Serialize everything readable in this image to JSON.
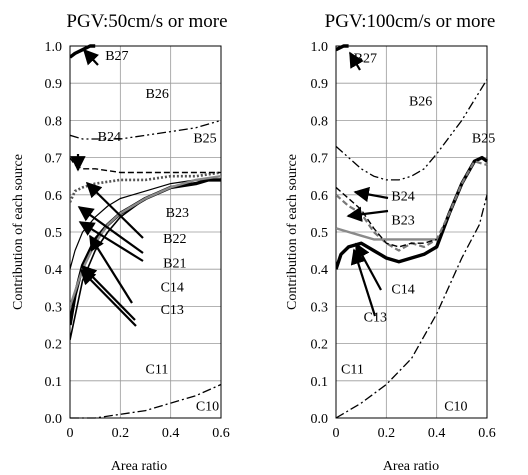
{
  "chart_data": [
    {
      "type": "line",
      "title": "PGV:50cm/s or more",
      "xlabel": "Area ratio",
      "ylabel": "Contribution of each source",
      "xlim": [
        0,
        0.6
      ],
      "ylim": [
        0,
        1.0
      ],
      "xticks": [
        "0",
        "0.2",
        "0.4",
        "0.6"
      ],
      "yticks": [
        "0.0",
        "0.1",
        "0.2",
        "0.3",
        "0.4",
        "0.5",
        "0.6",
        "0.7",
        "0.8",
        "0.9",
        "1.0"
      ],
      "grid": true,
      "series": [
        {
          "style": "dash-dot",
          "x": [
            0,
            0.1,
            0.2,
            0.3,
            0.4,
            0.5,
            0.6
          ],
          "y": [
            0.0,
            0.0,
            0.01,
            0.02,
            0.04,
            0.06,
            0.09
          ]
        },
        {
          "style": "solid",
          "x": [
            0,
            0.05,
            0.1,
            0.15,
            0.2,
            0.3,
            0.4,
            0.5,
            0.6
          ],
          "y": [
            0.21,
            0.37,
            0.45,
            0.5,
            0.54,
            0.59,
            0.62,
            0.64,
            0.64
          ]
        },
        {
          "style": "solid-bold",
          "x": [
            0,
            0.02,
            0.05,
            0.1,
            0.15,
            0.2,
            0.3,
            0.4,
            0.5,
            0.55,
            0.6
          ],
          "y": [
            0.25,
            0.33,
            0.41,
            0.48,
            0.52,
            0.55,
            0.59,
            0.62,
            0.63,
            0.64,
            0.64
          ]
        },
        {
          "style": "solid-thin",
          "x": [
            0,
            0.02,
            0.05,
            0.1,
            0.15,
            0.2,
            0.3,
            0.4,
            0.5,
            0.6
          ],
          "y": [
            0.4,
            0.45,
            0.5,
            0.54,
            0.57,
            0.59,
            0.61,
            0.63,
            0.64,
            0.65
          ]
        },
        {
          "style": "solid-gray",
          "x": [
            0,
            0.05,
            0.1,
            0.15,
            0.2,
            0.3,
            0.4,
            0.5,
            0.6
          ],
          "y": [
            0.3,
            0.4,
            0.47,
            0.52,
            0.55,
            0.59,
            0.62,
            0.64,
            0.65
          ]
        },
        {
          "style": "dotted-bold",
          "x": [
            0,
            0.02,
            0.05,
            0.1,
            0.2,
            0.3,
            0.4,
            0.5,
            0.6
          ],
          "y": [
            0.58,
            0.61,
            0.62,
            0.63,
            0.64,
            0.64,
            0.65,
            0.65,
            0.66
          ]
        },
        {
          "style": "dashed",
          "x": [
            0,
            0.02,
            0.05,
            0.1,
            0.2,
            0.3,
            0.4,
            0.5,
            0.6
          ],
          "y": [
            0.7,
            0.68,
            0.67,
            0.67,
            0.66,
            0.66,
            0.66,
            0.66,
            0.66
          ]
        },
        {
          "style": "dash-dot-dot",
          "x": [
            0,
            0.05,
            0.1,
            0.2,
            0.3,
            0.4,
            0.5,
            0.6
          ],
          "y": [
            0.76,
            0.75,
            0.75,
            0.75,
            0.76,
            0.77,
            0.78,
            0.8
          ]
        },
        {
          "style": "solid-bold",
          "x": [
            0,
            0.02,
            0.05,
            0.08,
            0.1
          ],
          "y": [
            0.97,
            0.98,
            0.99,
            1.0,
            1.0
          ]
        }
      ],
      "labels": [
        {
          "text": "B27",
          "x": 0.14,
          "y": 0.962
        },
        {
          "text": "B26",
          "x": 0.3,
          "y": 0.86
        },
        {
          "text": "B25",
          "x": 0.49,
          "y": 0.74
        },
        {
          "text": "B24",
          "x": 0.11,
          "y": 0.745
        },
        {
          "text": "B23",
          "x": 0.38,
          "y": 0.54
        },
        {
          "text": "B22",
          "x": 0.37,
          "y": 0.47
        },
        {
          "text": "B21",
          "x": 0.37,
          "y": 0.405
        },
        {
          "text": "C14",
          "x": 0.36,
          "y": 0.34
        },
        {
          "text": "C13",
          "x": 0.36,
          "y": 0.28
        },
        {
          "text": "C11",
          "x": 0.3,
          "y": 0.12
        },
        {
          "text": "C10",
          "x": 0.5,
          "y": 0.02
        }
      ]
    },
    {
      "type": "line",
      "title": "PGV:100cm/s or more",
      "xlabel": "Area ratio",
      "ylabel": "Contribution of each source",
      "xlim": [
        0,
        0.6
      ],
      "ylim": [
        0,
        1.0
      ],
      "xticks": [
        "0",
        "0.2",
        "0.4",
        "0.6"
      ],
      "yticks": [
        "0.0",
        "0.1",
        "0.2",
        "0.3",
        "0.4",
        "0.5",
        "0.6",
        "0.7",
        "0.8",
        "0.9",
        "1.0"
      ],
      "grid": true,
      "series": [
        {
          "style": "dash-dot",
          "x": [
            0,
            0.1,
            0.2,
            0.3,
            0.4,
            0.5,
            0.57,
            0.6
          ],
          "y": [
            0.0,
            0.04,
            0.09,
            0.16,
            0.28,
            0.43,
            0.52,
            0.6
          ]
        },
        {
          "style": "solid-bold",
          "x": [
            0,
            0.02,
            0.05,
            0.1,
            0.15,
            0.2,
            0.25,
            0.3,
            0.35,
            0.4,
            0.45,
            0.5,
            0.55,
            0.58,
            0.6
          ],
          "y": [
            0.4,
            0.44,
            0.46,
            0.47,
            0.45,
            0.43,
            0.42,
            0.43,
            0.44,
            0.46,
            0.55,
            0.63,
            0.69,
            0.7,
            0.69
          ]
        },
        {
          "style": "dashed-gray",
          "x": [
            0,
            0.05,
            0.1,
            0.15,
            0.2,
            0.25,
            0.3,
            0.35,
            0.4,
            0.45,
            0.5,
            0.55,
            0.6
          ],
          "y": [
            0.6,
            0.57,
            0.55,
            0.5,
            0.47,
            0.45,
            0.47,
            0.46,
            0.48,
            0.55,
            0.63,
            0.69,
            0.68
          ]
        },
        {
          "style": "solid-gray",
          "x": [
            0,
            0.05,
            0.1,
            0.15,
            0.2,
            0.25,
            0.3,
            0.35,
            0.4
          ],
          "y": [
            0.51,
            0.5,
            0.49,
            0.48,
            0.48,
            0.48,
            0.48,
            0.48,
            0.48
          ]
        },
        {
          "style": "dashed",
          "x": [
            0,
            0.05,
            0.1,
            0.15,
            0.2,
            0.25,
            0.3,
            0.35,
            0.4
          ],
          "y": [
            0.62,
            0.59,
            0.56,
            0.51,
            0.47,
            0.46,
            0.47,
            0.47,
            0.48
          ]
        },
        {
          "style": "dash-dot-dot",
          "x": [
            0,
            0.05,
            0.1,
            0.15,
            0.2,
            0.25,
            0.3,
            0.35,
            0.4,
            0.5,
            0.6
          ],
          "y": [
            0.73,
            0.7,
            0.67,
            0.65,
            0.64,
            0.64,
            0.65,
            0.67,
            0.71,
            0.8,
            0.91
          ]
        },
        {
          "style": "solid-bold",
          "x": [
            0,
            0.03,
            0.05
          ],
          "y": [
            0.99,
            1.0,
            1.0
          ]
        }
      ],
      "labels": [
        {
          "text": "B27",
          "x": 0.07,
          "y": 0.955
        },
        {
          "text": "B26",
          "x": 0.29,
          "y": 0.84
        },
        {
          "text": "B25",
          "x": 0.54,
          "y": 0.74
        },
        {
          "text": "B24",
          "x": 0.22,
          "y": 0.585
        },
        {
          "text": "B23",
          "x": 0.22,
          "y": 0.52
        },
        {
          "text": "C14",
          "x": 0.22,
          "y": 0.335
        },
        {
          "text": "C13",
          "x": 0.11,
          "y": 0.26
        },
        {
          "text": "C11",
          "x": 0.02,
          "y": 0.12
        },
        {
          "text": "C10",
          "x": 0.43,
          "y": 0.02
        }
      ]
    }
  ]
}
